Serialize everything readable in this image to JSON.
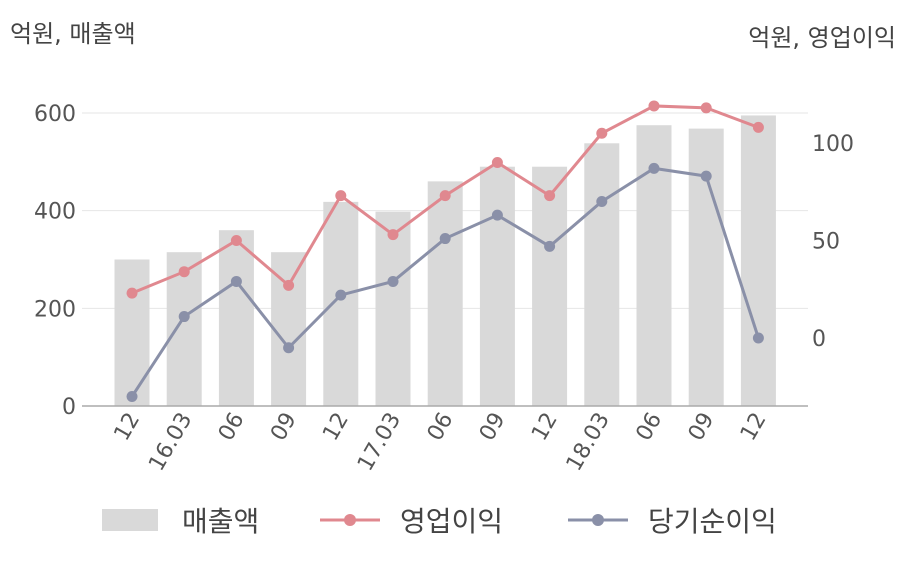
{
  "units": {
    "left": "억원, 매출액",
    "right": "억원, 영업이익"
  },
  "legend": [
    {
      "label": "매출액",
      "color": "#d9d9d9"
    },
    {
      "label": "영업이익",
      "color": "#e0888f"
    },
    {
      "label": "당기순이익",
      "color": "#8a90a8"
    }
  ],
  "chart_data": {
    "type": "bar",
    "categories": [
      "12",
      "16.03",
      "06",
      "09",
      "12",
      "17.03",
      "06",
      "09",
      "12",
      "18.03",
      "06",
      "09",
      "12"
    ],
    "series": [
      {
        "name": "매출액",
        "type": "bar",
        "axis": "left",
        "color": "#d9d9d9",
        "values": [
          300,
          315,
          360,
          315,
          418,
          398,
          460,
          490,
          490,
          538,
          575,
          568,
          595
        ]
      },
      {
        "name": "영업이익",
        "type": "line",
        "axis": "right",
        "color": "#e0888f",
        "values": [
          23,
          34,
          50,
          27,
          73,
          53,
          73,
          90,
          73,
          105,
          119,
          118,
          108
        ]
      },
      {
        "name": "당기순이익",
        "type": "line",
        "axis": "right",
        "color": "#8a90a8",
        "values": [
          -30,
          11,
          29,
          -5,
          22,
          29,
          51,
          63,
          47,
          70,
          87,
          83,
          0
        ]
      }
    ],
    "left_axis": {
      "ticks": [
        0,
        200,
        400,
        600
      ],
      "ylim": [
        0,
        600
      ]
    },
    "right_axis": {
      "ticks": [
        0,
        50,
        100
      ],
      "ylim": [
        -35,
        115
      ]
    }
  }
}
